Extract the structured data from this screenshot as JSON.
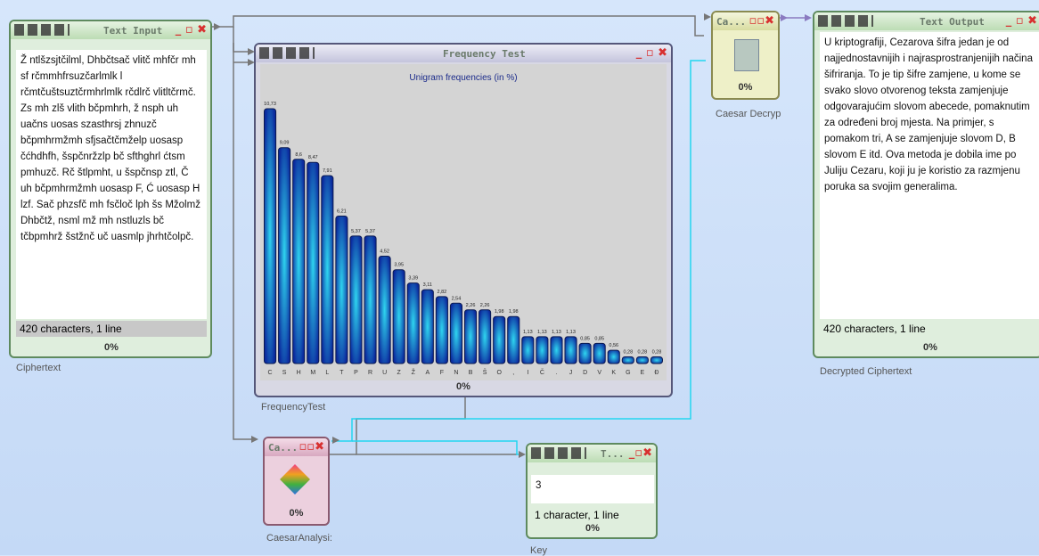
{
  "nodes": {
    "text_input": {
      "title": "Text Input",
      "text": "Ž ntlšzsjtčilml, Dhbčtsač vlitč mhfčr mh sf rčmmhfrsuzčarlmlk l rčmtčuštsuztčrmhrlmlk rčdlrč vlitltčrmč. Zs mh zlš vlith bčpmhrh, ž nsph uh uačns uosas szasthrsj zhnuzč bčpmhrmžmh sfjsačtčmželp uosasp čćhdhfh, šspčnržzlp bč sfthghrl ćtsm pmhuzč. Rč štlpmht, u šspčnsp ztl, Č uh bčpmhrmžmh uosasp F, Ć uosasp H lzf. Sač phzsfč mh fsčloč lph šs Mžolmž Dhbčtž, nsml mž mh nstluzls bč tčbpmhrž šstžnč uč uasmlp jhrhtčolpč.",
      "status": "420 characters,  1 line",
      "progress": "0%",
      "label": "Ciphertext"
    },
    "frequency_test": {
      "title": "Frequency Test",
      "progress": "0%",
      "label": "FrequencyTest"
    },
    "caesar_decrypt": {
      "title": "Ca...",
      "progress": "0%",
      "label": "Caesar Decryp"
    },
    "text_output": {
      "title": "Text Output",
      "text": "U kriptografiji, Cezarova šifra jedan je od najjednostavnijih i najrasprostranjenijih načina šifriranja. To je tip šifre zamjene, u kome se svako slovo otvorenog teksta zamjenjuje odgovarajućim slovom abecede, pomaknutim za određeni broj mjesta. Na primjer, s pomakom tri, A se zamjenjuje slovom D, B slovom E itd. Ova metoda je dobila ime po Juliju Cezaru, koji ju je koristio za razmjenu poruka sa svojim generalima.",
      "status": "420 characters,  1 line",
      "progress": "0%",
      "label": "Decrypted Ciphertext"
    },
    "caesar_analysis": {
      "title": "Ca...",
      "progress": "0%",
      "label": "CaesarAnalysi:"
    },
    "key": {
      "title": "T...",
      "text": "3",
      "status": "1 character,  1 line",
      "progress": "0%",
      "label": "Key"
    }
  },
  "chart_data": {
    "type": "bar",
    "title": "Unigram frequencies (in %)",
    "color": "#0b2a9e",
    "categories": [
      "C",
      "S",
      "H",
      "M",
      "L",
      "T",
      "P",
      "R",
      "U",
      "Z",
      "Ž",
      "A",
      "F",
      "N",
      "B",
      "Š",
      "O",
      ",",
      "I",
      "Č",
      ".",
      "J",
      "D",
      "V",
      "K",
      "G",
      "E",
      "Đ"
    ],
    "values": [
      10.73,
      9.09,
      8.6,
      8.47,
      7.91,
      6.21,
      5.37,
      5.37,
      4.52,
      3.95,
      3.39,
      3.11,
      2.82,
      2.54,
      2.26,
      2.26,
      1.98,
      1.98,
      1.13,
      1.13,
      1.13,
      1.13,
      0.85,
      0.85,
      0.56,
      0.28,
      0.28,
      0.28
    ],
    "value_labels": [
      "10,73",
      "9,09",
      "8,6",
      "8,47",
      "7,91",
      "6,21",
      "5,37",
      "5,37",
      "4,52",
      "3,95",
      "3,39",
      "3,11",
      "2,82",
      "2,54",
      "2,26",
      "2,26",
      "1,98",
      "1,98",
      "1,13",
      "1,13",
      "1,13",
      "1,13",
      "0,85",
      "0,85",
      "0,56",
      "0,28",
      "0,28",
      "0,28"
    ]
  }
}
